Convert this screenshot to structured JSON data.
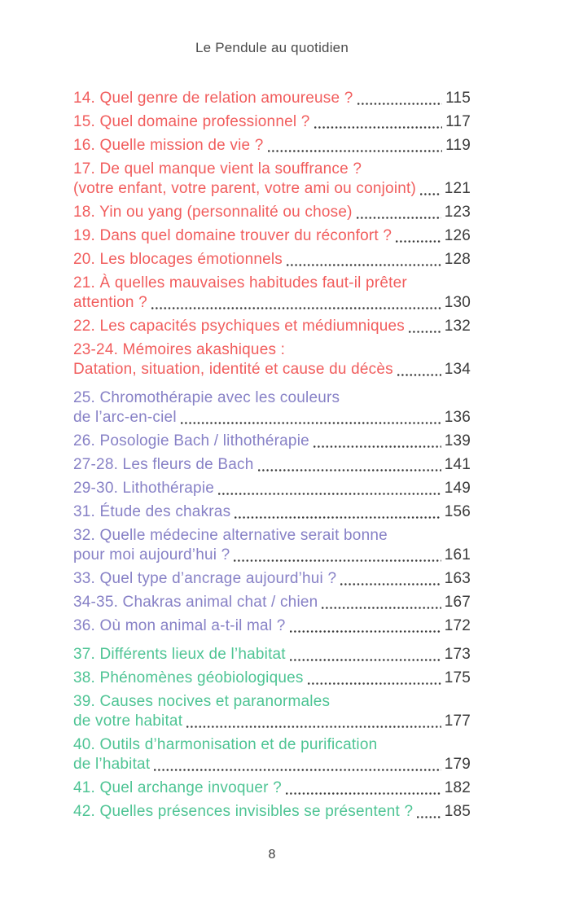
{
  "header": {
    "title": "Le Pendule au quotidien"
  },
  "footer": {
    "page_number": "8"
  },
  "colors": {
    "red": "#f15d5d",
    "purple": "#8781c6",
    "green": "#4ec494",
    "ink": "#3b3b3b"
  },
  "toc": {
    "sections": [
      {
        "name": "questions-personnelles",
        "color": "#f15d5d",
        "entries": [
          {
            "lines": [
              "14. Quel genre de relation amoureuse ?"
            ],
            "page": "115"
          },
          {
            "lines": [
              "15. Quel domaine professionnel ?"
            ],
            "page": "117"
          },
          {
            "lines": [
              "16. Quelle mission de vie ?"
            ],
            "page": "119"
          },
          {
            "lines": [
              "17. De quel manque vient la souffrance ?",
              "(votre enfant, votre parent, votre ami ou conjoint)"
            ],
            "page": "121"
          },
          {
            "lines": [
              "18. Yin ou yang (personnalité ou chose)"
            ],
            "page": "123"
          },
          {
            "lines": [
              "19. Dans quel domaine trouver du réconfort ?"
            ],
            "page": "126"
          },
          {
            "lines": [
              "20. Les blocages émotionnels"
            ],
            "page": "128"
          },
          {
            "lines": [
              "21. À quelles mauvaises habitudes faut-il prêter",
              "attention ?"
            ],
            "page": "130"
          },
          {
            "lines": [
              "22. Les capacités psychiques et médiumniques"
            ],
            "page": "132"
          },
          {
            "lines": [
              "23-24. Mémoires akashiques :",
              "Datation, situation, identité et cause du décès"
            ],
            "page": "134"
          }
        ]
      },
      {
        "name": "therapies-alternatives",
        "color": "#8781c6",
        "entries": [
          {
            "lines": [
              "25. Chromothérapie avec les couleurs",
              "de l’arc-en-ciel"
            ],
            "page": "136"
          },
          {
            "lines": [
              "26. Posologie Bach / lithothérapie"
            ],
            "page": "139"
          },
          {
            "lines": [
              "27-28. Les fleurs de Bach"
            ],
            "page": "141"
          },
          {
            "lines": [
              "29-30. Lithothérapie"
            ],
            "page": "149"
          },
          {
            "lines": [
              "31. Étude des chakras"
            ],
            "page": "156"
          },
          {
            "lines": [
              "32. Quelle médecine alternative serait bonne",
              "pour moi aujourd’hui ?"
            ],
            "page": "161"
          },
          {
            "lines": [
              "33. Quel type d’ancrage aujourd’hui ?"
            ],
            "page": "163"
          },
          {
            "lines": [
              "34-35. Chakras animal chat / chien"
            ],
            "page": "167"
          },
          {
            "lines": [
              "36. Où mon animal a-t-il mal ?"
            ],
            "page": "172"
          }
        ]
      },
      {
        "name": "habitat",
        "color": "#4ec494",
        "entries": [
          {
            "lines": [
              "37. Différents lieux de l’habitat"
            ],
            "page": "173"
          },
          {
            "lines": [
              "38. Phénomènes géobiologiques"
            ],
            "page": "175"
          },
          {
            "lines": [
              "39. Causes nocives et paranormales",
              "de votre habitat"
            ],
            "page": "177"
          },
          {
            "lines": [
              "40. Outils d’harmonisation et de purification",
              "de l’habitat"
            ],
            "page": "179"
          },
          {
            "lines": [
              "41. Quel archange invoquer ?"
            ],
            "page": "182"
          },
          {
            "lines": [
              "42. Quelles présences invisibles se présentent ?"
            ],
            "page": "185"
          }
        ]
      }
    ]
  }
}
